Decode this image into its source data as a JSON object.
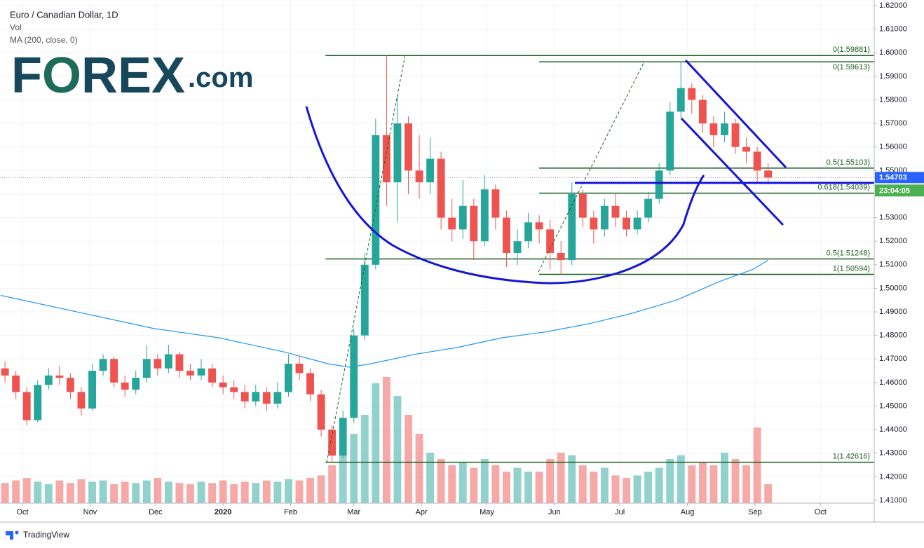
{
  "chart_data": {
    "type": "candlestick",
    "title": "Euro / Canadian Dollar, 1D",
    "indicators": [
      "Vol",
      "MA (200, close, 0)"
    ],
    "logo": [
      "F",
      "O",
      "REX",
      ".com"
    ],
    "x": [
      -8,
      -3,
      2,
      7,
      12,
      17,
      22,
      27,
      32,
      37,
      42,
      47,
      52,
      57,
      62,
      67,
      72,
      77,
      82,
      87,
      92,
      97,
      102,
      107,
      112,
      117,
      122,
      127,
      132,
      137,
      142,
      147,
      152,
      157,
      162,
      167,
      172,
      177,
      182,
      187,
      192,
      197,
      202,
      207,
      212,
      217,
      222,
      227,
      232,
      237,
      242,
      247,
      252,
      257,
      262,
      267,
      272,
      277,
      282,
      287,
      292,
      297,
      302,
      307,
      312,
      317,
      322,
      327,
      332,
      337,
      342
    ],
    "open": [
      1.466,
      1.463,
      1.456,
      1.444,
      1.459,
      1.463,
      1.462,
      1.456,
      1.449,
      1.465,
      1.47,
      1.46,
      1.457,
      1.462,
      1.47,
      1.466,
      1.472,
      1.465,
      1.463,
      1.466,
      1.46,
      1.458,
      1.456,
      1.452,
      1.456,
      1.451,
      1.456,
      1.468,
      1.464,
      1.455,
      1.44,
      1.429,
      1.445,
      1.48,
      1.51,
      1.565,
      1.545,
      1.57,
      1.55,
      1.545,
      1.555,
      1.53,
      1.525,
      1.535,
      1.52,
      1.542,
      1.53,
      1.515,
      1.52,
      1.528,
      1.525,
      1.515,
      1.512,
      1.54,
      1.53,
      1.525,
      1.535,
      1.53,
      1.525,
      1.53,
      1.538,
      1.55,
      1.575,
      1.585,
      1.58,
      1.57,
      1.565,
      1.57,
      1.56,
      1.558,
      1.55
    ],
    "high": [
      1.469,
      1.465,
      1.458,
      1.461,
      1.466,
      1.467,
      1.464,
      1.458,
      1.468,
      1.472,
      1.471,
      1.463,
      1.465,
      1.476,
      1.472,
      1.476,
      1.473,
      1.468,
      1.47,
      1.468,
      1.463,
      1.461,
      1.459,
      1.459,
      1.458,
      1.46,
      1.472,
      1.471,
      1.466,
      1.457,
      1.442,
      1.448,
      1.483,
      1.515,
      1.572,
      1.5988,
      1.582,
      1.573,
      1.565,
      1.564,
      1.558,
      1.538,
      1.546,
      1.538,
      1.548,
      1.544,
      1.533,
      1.525,
      1.532,
      1.531,
      1.529,
      1.52,
      1.545,
      1.542,
      1.533,
      1.538,
      1.54,
      1.533,
      1.533,
      1.541,
      1.553,
      1.579,
      1.5961,
      1.587,
      1.582,
      1.573,
      1.575,
      1.572,
      1.564,
      1.56,
      1.553
    ],
    "low": [
      1.46,
      1.453,
      1.442,
      1.443,
      1.457,
      1.459,
      1.453,
      1.446,
      1.448,
      1.463,
      1.458,
      1.454,
      1.455,
      1.46,
      1.463,
      1.464,
      1.462,
      1.461,
      1.461,
      1.458,
      1.455,
      1.453,
      1.449,
      1.45,
      1.448,
      1.449,
      1.454,
      1.461,
      1.452,
      1.437,
      1.4261,
      1.428,
      1.443,
      1.478,
      1.508,
      1.535,
      1.528,
      1.54,
      1.538,
      1.54,
      1.525,
      1.52,
      1.521,
      1.512,
      1.518,
      1.525,
      1.509,
      1.51,
      1.517,
      1.519,
      1.508,
      1.5059,
      1.51,
      1.526,
      1.519,
      1.522,
      1.526,
      1.522,
      1.523,
      1.528,
      1.536,
      1.548,
      1.572,
      1.574,
      1.566,
      1.56,
      1.562,
      1.557,
      1.553,
      1.545,
      1.544
    ],
    "close": [
      1.463,
      1.456,
      1.444,
      1.459,
      1.463,
      1.462,
      1.456,
      1.449,
      1.465,
      1.47,
      1.46,
      1.457,
      1.462,
      1.47,
      1.466,
      1.472,
      1.465,
      1.463,
      1.466,
      1.46,
      1.458,
      1.456,
      1.452,
      1.456,
      1.451,
      1.456,
      1.468,
      1.464,
      1.455,
      1.44,
      1.429,
      1.445,
      1.48,
      1.51,
      1.565,
      1.545,
      1.57,
      1.55,
      1.545,
      1.555,
      1.53,
      1.525,
      1.535,
      1.52,
      1.542,
      1.53,
      1.515,
      1.52,
      1.528,
      1.525,
      1.515,
      1.512,
      1.54,
      1.53,
      1.525,
      1.535,
      1.53,
      1.525,
      1.53,
      1.538,
      1.55,
      1.575,
      1.585,
      1.58,
      1.57,
      1.565,
      1.57,
      1.56,
      1.558,
      1.55,
      1.547
    ],
    "volume": [
      16,
      18,
      20,
      17,
      15,
      18,
      16,
      19,
      17,
      18,
      15,
      17,
      16,
      18,
      20,
      17,
      16,
      15,
      17,
      16,
      18,
      15,
      17,
      16,
      18,
      17,
      19,
      18,
      20,
      22,
      30,
      38,
      55,
      70,
      95,
      100,
      85,
      70,
      55,
      40,
      35,
      30,
      32,
      28,
      35,
      30,
      25,
      28,
      25,
      25,
      35,
      40,
      38,
      30,
      25,
      28,
      22,
      20,
      22,
      25,
      28,
      35,
      38,
      30,
      32,
      30,
      40,
      35,
      30,
      60,
      15
    ],
    "volume_lim": [
      0,
      100
    ],
    "up_color": "#26a69a",
    "down_color": "#ef5350",
    "ma": {
      "color": "#2196f3",
      "x": [
        -10,
        30,
        60,
        90,
        120,
        140,
        150,
        160,
        180,
        200,
        220,
        240,
        260,
        280,
        300,
        320,
        335,
        342
      ],
      "values": [
        1.497,
        1.489,
        1.483,
        1.479,
        1.473,
        1.468,
        1.4665,
        1.468,
        1.472,
        1.475,
        1.479,
        1.4815,
        1.485,
        1.4895,
        1.495,
        1.503,
        1.508,
        1.512
      ]
    },
    "xlim": [
      -10.29,
      390.66
    ],
    "xticks": [
      {
        "value": 0,
        "label": "Oct"
      },
      {
        "value": 31,
        "label": "Nov"
      },
      {
        "value": 61,
        "label": "Dec"
      },
      {
        "value": 92,
        "label": "2020"
      },
      {
        "value": 123,
        "label": "Feb"
      },
      {
        "value": 152,
        "label": "Mar"
      },
      {
        "value": 183,
        "label": "Apr"
      },
      {
        "value": 213,
        "label": "May"
      },
      {
        "value": 244,
        "label": "Jun"
      },
      {
        "value": 274,
        "label": "Jul"
      },
      {
        "value": 305,
        "label": "Aug"
      },
      {
        "value": 336,
        "label": "Sep"
      },
      {
        "value": 366,
        "label": "Oct"
      }
    ],
    "ylim": [
      1.4088,
      1.6224
    ],
    "yticks": [
      {
        "value": 1.41,
        "label": "1.41000"
      },
      {
        "value": 1.42,
        "label": "1.42000"
      },
      {
        "value": 1.43,
        "label": "1.43000"
      },
      {
        "value": 1.44,
        "label": "1.44000"
      },
      {
        "value": 1.45,
        "label": "1.45000"
      },
      {
        "value": 1.46,
        "label": "1.46000"
      },
      {
        "value": 1.47,
        "label": "1.47000"
      },
      {
        "value": 1.48,
        "label": "1.48000"
      },
      {
        "value": 1.49,
        "label": "1.49000"
      },
      {
        "value": 1.5,
        "label": "1.50000"
      },
      {
        "value": 1.51,
        "label": "1.51000"
      },
      {
        "value": 1.52,
        "label": "1.52000"
      },
      {
        "value": 1.53,
        "label": "1.53000"
      },
      {
        "value": 1.54,
        "label": "1.54000"
      },
      {
        "value": 1.55,
        "label": "1.55000"
      },
      {
        "value": 1.56,
        "label": "1.56000"
      },
      {
        "value": 1.57,
        "label": "1.57000"
      },
      {
        "value": 1.58,
        "label": "1.58000"
      },
      {
        "value": 1.59,
        "label": "1.59000"
      },
      {
        "value": 1.6,
        "label": "1.60000"
      },
      {
        "value": 1.61,
        "label": "1.61000"
      },
      {
        "value": 1.62,
        "label": "1.62000"
      }
    ],
    "fib_levels": [
      {
        "label": "0(1.59881)",
        "value": 1.59881,
        "start": 139
      },
      {
        "label": "0(1.59613)",
        "value": 1.59613,
        "start": 237
      },
      {
        "label": "0.5(1.55103)",
        "value": 1.55103,
        "start": 237
      },
      {
        "label": "0.618(1.54039)",
        "value": 1.54039,
        "start": 237
      },
      {
        "label": "0.5(1.51248)",
        "value": 1.51248,
        "start": 139
      },
      {
        "label": "1(1.50594)",
        "value": 1.50594,
        "start": 237
      },
      {
        "label": "1(1.42616)",
        "value": 1.42616,
        "start": 139
      }
    ],
    "fib_color": "#1b5e20",
    "last_price": 1.54703,
    "countdown": "23:04:05",
    "grid": true
  },
  "footer": {
    "brand": "TradingView"
  }
}
